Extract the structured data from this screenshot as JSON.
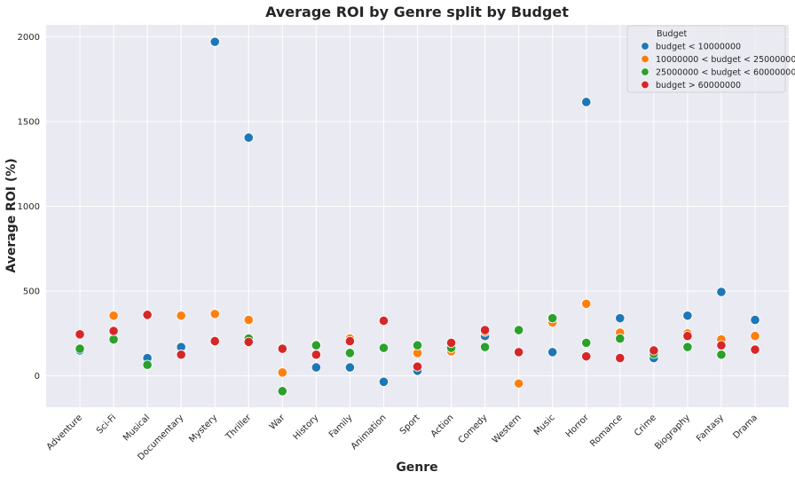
{
  "chart_data": {
    "type": "scatter",
    "title": "Average ROI by Genre split by Budget",
    "xlabel": "Genre",
    "ylabel": "Average ROI (%)",
    "categories": [
      "Adventure",
      "Sci-Fi",
      "Musical",
      "Documentary",
      "Mystery",
      "Thriller",
      "War",
      "History",
      "Family",
      "Animation",
      "Sport",
      "Action",
      "Comedy",
      "Western",
      "Music",
      "Horror",
      "Romance",
      "Crime",
      "Biography",
      "Fantasy",
      "Drama"
    ],
    "ylim": [
      -185,
      2070
    ],
    "yticks": [
      0,
      500,
      1000,
      1500,
      2000
    ],
    "grid": true,
    "background_color": "#eaeaf2",
    "legend": {
      "title": "Budget",
      "placement": "top-right"
    },
    "series": [
      {
        "name": "budget < 10000000",
        "color": "#1f77b4",
        "values": [
          150,
          215,
          105,
          170,
          1970,
          1405,
          null,
          50,
          50,
          -35,
          30,
          160,
          235,
          null,
          140,
          1615,
          340,
          105,
          355,
          495,
          330
        ]
      },
      {
        "name": "10000000 < budget < 25000000",
        "color": "#ff7f0e",
        "values": [
          null,
          355,
          null,
          355,
          365,
          330,
          20,
          185,
          220,
          null,
          135,
          145,
          260,
          -45,
          315,
          425,
          255,
          null,
          250,
          215,
          235
        ]
      },
      {
        "name": "25000000 < budget < 60000000",
        "color": "#2ca02c",
        "values": [
          160,
          215,
          65,
          125,
          200,
          220,
          -90,
          180,
          135,
          165,
          180,
          165,
          170,
          270,
          340,
          195,
          220,
          130,
          170,
          125,
          null
        ]
      },
      {
        "name": "budget > 60000000",
        "color": "#d62728",
        "values": [
          245,
          265,
          360,
          125,
          205,
          200,
          160,
          125,
          205,
          325,
          55,
          195,
          270,
          140,
          null,
          115,
          105,
          150,
          235,
          180,
          155
        ]
      }
    ]
  }
}
